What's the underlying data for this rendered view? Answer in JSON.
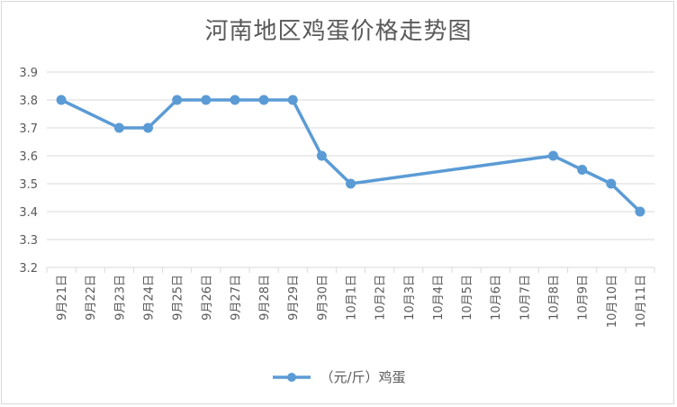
{
  "chart_data": {
    "type": "line",
    "title": "河南地区鸡蛋价格走势图",
    "categories": [
      "9月21日",
      "9月22日",
      "9月23日",
      "9月24日",
      "9月25日",
      "9月26日",
      "9月27日",
      "9月28日",
      "9月29日",
      "9月30日",
      "10月1日",
      "10月2日",
      "10月3日",
      "10月4日",
      "10月5日",
      "10月6日",
      "10月7日",
      "10月8日",
      "10月9日",
      "10月10日",
      "10月11日"
    ],
    "series": [
      {
        "name": "（元/斤）鸡蛋",
        "values": [
          3.8,
          null,
          3.7,
          3.7,
          3.8,
          3.8,
          3.8,
          3.8,
          3.8,
          3.6,
          3.5,
          null,
          null,
          null,
          null,
          null,
          null,
          3.6,
          3.55,
          3.5,
          3.4
        ],
        "color": "#5b9bd5"
      }
    ],
    "ylim": [
      3.2,
      3.9
    ],
    "yticks": [
      3.2,
      3.3,
      3.4,
      3.5,
      3.6,
      3.7,
      3.8,
      3.9
    ],
    "ytick_labels": [
      "3.2",
      "3.3",
      "3.4",
      "3.5",
      "3.6",
      "3.7",
      "3.8",
      "3.9"
    ],
    "gridlines": true,
    "legend_position": "bottom",
    "connect_gaps": true
  }
}
